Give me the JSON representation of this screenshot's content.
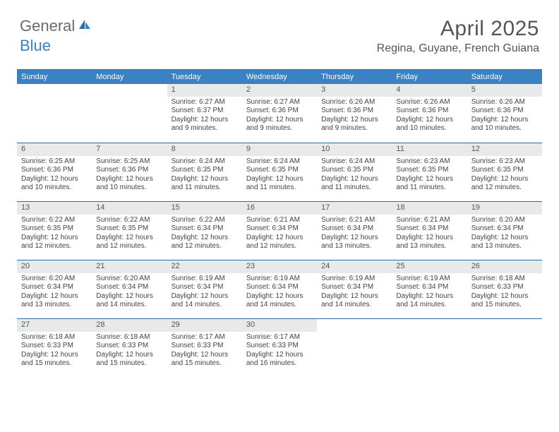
{
  "logo": {
    "general": "General",
    "blue": "Blue"
  },
  "header": {
    "title": "April 2025",
    "location": "Regina, Guyane, French Guiana"
  },
  "colors": {
    "header_bar": "#3b82c4",
    "rule": "#2f6ba8",
    "daynum_bg": "#e7e9eb",
    "text": "#444444",
    "logo_blue": "#3b7fc4",
    "logo_gray": "#6b6b6b"
  },
  "dayNames": [
    "Sunday",
    "Monday",
    "Tuesday",
    "Wednesday",
    "Thursday",
    "Friday",
    "Saturday"
  ],
  "weeks": [
    [
      null,
      null,
      {
        "n": "1",
        "sunrise": "Sunrise: 6:27 AM",
        "sunset": "Sunset: 6:37 PM",
        "day1": "Daylight: 12 hours",
        "day2": "and 9 minutes."
      },
      {
        "n": "2",
        "sunrise": "Sunrise: 6:27 AM",
        "sunset": "Sunset: 6:36 PM",
        "day1": "Daylight: 12 hours",
        "day2": "and 9 minutes."
      },
      {
        "n": "3",
        "sunrise": "Sunrise: 6:26 AM",
        "sunset": "Sunset: 6:36 PM",
        "day1": "Daylight: 12 hours",
        "day2": "and 9 minutes."
      },
      {
        "n": "4",
        "sunrise": "Sunrise: 6:26 AM",
        "sunset": "Sunset: 6:36 PM",
        "day1": "Daylight: 12 hours",
        "day2": "and 10 minutes."
      },
      {
        "n": "5",
        "sunrise": "Sunrise: 6:26 AM",
        "sunset": "Sunset: 6:36 PM",
        "day1": "Daylight: 12 hours",
        "day2": "and 10 minutes."
      }
    ],
    [
      {
        "n": "6",
        "sunrise": "Sunrise: 6:25 AM",
        "sunset": "Sunset: 6:36 PM",
        "day1": "Daylight: 12 hours",
        "day2": "and 10 minutes."
      },
      {
        "n": "7",
        "sunrise": "Sunrise: 6:25 AM",
        "sunset": "Sunset: 6:36 PM",
        "day1": "Daylight: 12 hours",
        "day2": "and 10 minutes."
      },
      {
        "n": "8",
        "sunrise": "Sunrise: 6:24 AM",
        "sunset": "Sunset: 6:35 PM",
        "day1": "Daylight: 12 hours",
        "day2": "and 11 minutes."
      },
      {
        "n": "9",
        "sunrise": "Sunrise: 6:24 AM",
        "sunset": "Sunset: 6:35 PM",
        "day1": "Daylight: 12 hours",
        "day2": "and 11 minutes."
      },
      {
        "n": "10",
        "sunrise": "Sunrise: 6:24 AM",
        "sunset": "Sunset: 6:35 PM",
        "day1": "Daylight: 12 hours",
        "day2": "and 11 minutes."
      },
      {
        "n": "11",
        "sunrise": "Sunrise: 6:23 AM",
        "sunset": "Sunset: 6:35 PM",
        "day1": "Daylight: 12 hours",
        "day2": "and 11 minutes."
      },
      {
        "n": "12",
        "sunrise": "Sunrise: 6:23 AM",
        "sunset": "Sunset: 6:35 PM",
        "day1": "Daylight: 12 hours",
        "day2": "and 12 minutes."
      }
    ],
    [
      {
        "n": "13",
        "sunrise": "Sunrise: 6:22 AM",
        "sunset": "Sunset: 6:35 PM",
        "day1": "Daylight: 12 hours",
        "day2": "and 12 minutes."
      },
      {
        "n": "14",
        "sunrise": "Sunrise: 6:22 AM",
        "sunset": "Sunset: 6:35 PM",
        "day1": "Daylight: 12 hours",
        "day2": "and 12 minutes."
      },
      {
        "n": "15",
        "sunrise": "Sunrise: 6:22 AM",
        "sunset": "Sunset: 6:34 PM",
        "day1": "Daylight: 12 hours",
        "day2": "and 12 minutes."
      },
      {
        "n": "16",
        "sunrise": "Sunrise: 6:21 AM",
        "sunset": "Sunset: 6:34 PM",
        "day1": "Daylight: 12 hours",
        "day2": "and 12 minutes."
      },
      {
        "n": "17",
        "sunrise": "Sunrise: 6:21 AM",
        "sunset": "Sunset: 6:34 PM",
        "day1": "Daylight: 12 hours",
        "day2": "and 13 minutes."
      },
      {
        "n": "18",
        "sunrise": "Sunrise: 6:21 AM",
        "sunset": "Sunset: 6:34 PM",
        "day1": "Daylight: 12 hours",
        "day2": "and 13 minutes."
      },
      {
        "n": "19",
        "sunrise": "Sunrise: 6:20 AM",
        "sunset": "Sunset: 6:34 PM",
        "day1": "Daylight: 12 hours",
        "day2": "and 13 minutes."
      }
    ],
    [
      {
        "n": "20",
        "sunrise": "Sunrise: 6:20 AM",
        "sunset": "Sunset: 6:34 PM",
        "day1": "Daylight: 12 hours",
        "day2": "and 13 minutes."
      },
      {
        "n": "21",
        "sunrise": "Sunrise: 6:20 AM",
        "sunset": "Sunset: 6:34 PM",
        "day1": "Daylight: 12 hours",
        "day2": "and 14 minutes."
      },
      {
        "n": "22",
        "sunrise": "Sunrise: 6:19 AM",
        "sunset": "Sunset: 6:34 PM",
        "day1": "Daylight: 12 hours",
        "day2": "and 14 minutes."
      },
      {
        "n": "23",
        "sunrise": "Sunrise: 6:19 AM",
        "sunset": "Sunset: 6:34 PM",
        "day1": "Daylight: 12 hours",
        "day2": "and 14 minutes."
      },
      {
        "n": "24",
        "sunrise": "Sunrise: 6:19 AM",
        "sunset": "Sunset: 6:34 PM",
        "day1": "Daylight: 12 hours",
        "day2": "and 14 minutes."
      },
      {
        "n": "25",
        "sunrise": "Sunrise: 6:19 AM",
        "sunset": "Sunset: 6:34 PM",
        "day1": "Daylight: 12 hours",
        "day2": "and 14 minutes."
      },
      {
        "n": "26",
        "sunrise": "Sunrise: 6:18 AM",
        "sunset": "Sunset: 6:33 PM",
        "day1": "Daylight: 12 hours",
        "day2": "and 15 minutes."
      }
    ],
    [
      {
        "n": "27",
        "sunrise": "Sunrise: 6:18 AM",
        "sunset": "Sunset: 6:33 PM",
        "day1": "Daylight: 12 hours",
        "day2": "and 15 minutes."
      },
      {
        "n": "28",
        "sunrise": "Sunrise: 6:18 AM",
        "sunset": "Sunset: 6:33 PM",
        "day1": "Daylight: 12 hours",
        "day2": "and 15 minutes."
      },
      {
        "n": "29",
        "sunrise": "Sunrise: 6:17 AM",
        "sunset": "Sunset: 6:33 PM",
        "day1": "Daylight: 12 hours",
        "day2": "and 15 minutes."
      },
      {
        "n": "30",
        "sunrise": "Sunrise: 6:17 AM",
        "sunset": "Sunset: 6:33 PM",
        "day1": "Daylight: 12 hours",
        "day2": "and 16 minutes."
      },
      null,
      null,
      null
    ]
  ]
}
